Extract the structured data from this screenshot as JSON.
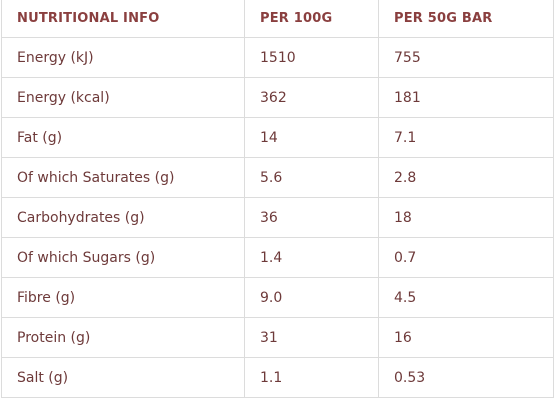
{
  "table": {
    "headers": [
      "NUTRITIONAL INFO",
      "PER 100G",
      "PER 50G BAR"
    ],
    "rows": [
      [
        "Energy (kJ)",
        "1510",
        "755"
      ],
      [
        "Energy (kcal)",
        "362",
        "181"
      ],
      [
        "Fat (g)",
        "14",
        "7.1"
      ],
      [
        "Of which Saturates (g)",
        "5.6",
        "2.8"
      ],
      [
        "Carbohydrates (g)",
        "36",
        "18"
      ],
      [
        "Of which Sugars (g)",
        "1.4",
        "0.7"
      ],
      [
        "Fibre (g)",
        "9.0",
        "4.5"
      ],
      [
        "Protein (g)",
        "31",
        "16"
      ],
      [
        "Salt (g)",
        "1.1",
        "0.53"
      ]
    ]
  },
  "colors": {
    "header_text": "#8a3f3f",
    "body_text": "#6e3a3a",
    "border": "#dcdcdc",
    "background": "#ffffff"
  }
}
